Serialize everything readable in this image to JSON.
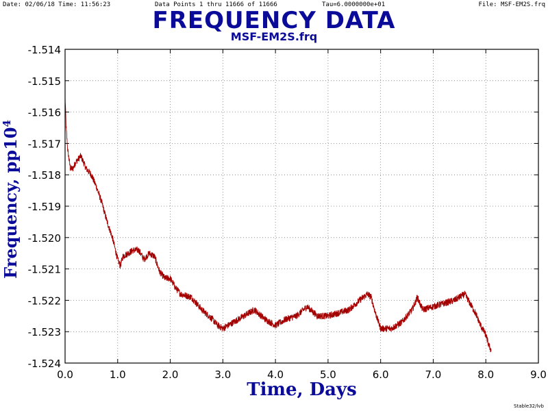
{
  "header": {
    "date": "Date: 02/06/18  Time: 11:56:23",
    "points": "Data Points 1 thru 11666 of 11666",
    "tau": "Tau=6.0000000e+01",
    "file": "File: MSF-EM2S.frq"
  },
  "footer": "Stable32/lvb",
  "colors": {
    "title": "#0b0b9a",
    "series": "#a30000",
    "axis_label": "#0b0b9a"
  },
  "chart_data": {
    "type": "line",
    "title": "FREQUENCY DATA",
    "subtitle": "MSF-EM2S.frq",
    "xlabel": "Time,  Days",
    "ylabel": "Frequency,  pp10",
    "ylabel_superscript": "4",
    "xlim": [
      0.0,
      9.0
    ],
    "ylim": [
      -1.524,
      -1.514
    ],
    "grid": true,
    "xticks": [
      "0.0",
      "1.0",
      "2.0",
      "3.0",
      "4.0",
      "5.0",
      "6.0",
      "7.0",
      "8.0",
      "9.0"
    ],
    "yticks": [
      "-1.514",
      "-1.515",
      "-1.516",
      "-1.517",
      "-1.518",
      "-1.519",
      "-1.520",
      "-1.521",
      "-1.522",
      "-1.523",
      "-1.524"
    ],
    "series": [
      {
        "x": [
          0.0,
          0.02,
          0.05,
          0.1,
          0.15,
          0.2,
          0.3,
          0.35,
          0.4,
          0.5,
          0.6,
          0.7,
          0.8,
          0.9,
          1.0,
          1.05,
          1.1,
          1.2,
          1.3,
          1.4,
          1.5,
          1.6,
          1.7,
          1.8,
          1.9,
          2.0,
          2.1,
          2.2,
          2.4,
          2.6,
          2.8,
          2.9,
          3.0,
          3.1,
          3.2,
          3.4,
          3.6,
          3.8,
          4.0,
          4.2,
          4.4,
          4.6,
          4.8,
          5.0,
          5.2,
          5.4,
          5.6,
          5.75,
          5.82,
          5.9,
          6.0,
          6.2,
          6.4,
          6.6,
          6.7,
          6.72,
          6.8,
          7.0,
          7.2,
          7.4,
          7.6,
          7.7,
          7.8,
          7.9,
          8.0,
          8.05,
          8.1
        ],
        "y": [
          -1.5155,
          -1.5165,
          -1.5172,
          -1.5178,
          -1.5178,
          -1.5176,
          -1.5174,
          -1.5176,
          -1.5178,
          -1.518,
          -1.5184,
          -1.5189,
          -1.5195,
          -1.52,
          -1.5207,
          -1.5209,
          -1.5206,
          -1.5205,
          -1.5204,
          -1.5204,
          -1.5207,
          -1.5205,
          -1.5206,
          -1.5211,
          -1.5213,
          -1.5213,
          -1.5216,
          -1.5218,
          -1.5219,
          -1.5223,
          -1.5226,
          -1.5228,
          -1.5229,
          -1.5228,
          -1.5227,
          -1.5225,
          -1.5223,
          -1.5226,
          -1.5228,
          -1.5226,
          -1.5225,
          -1.5222,
          -1.5225,
          -1.5225,
          -1.5224,
          -1.5223,
          -1.522,
          -1.5218,
          -1.5219,
          -1.5224,
          -1.5229,
          -1.5229,
          -1.5227,
          -1.5223,
          -1.5219,
          -1.522,
          -1.5223,
          -1.5222,
          -1.5221,
          -1.522,
          -1.5218,
          -1.5221,
          -1.5224,
          -1.5228,
          -1.5231,
          -1.5234,
          -1.5236
        ]
      }
    ]
  }
}
